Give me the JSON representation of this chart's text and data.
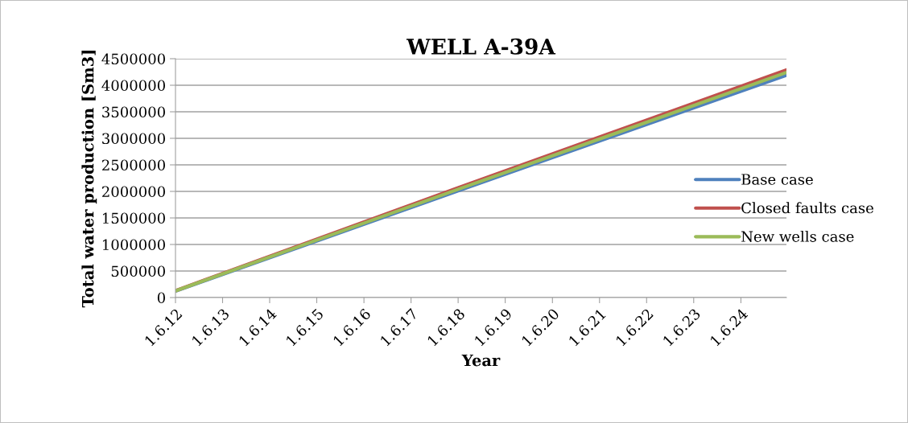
{
  "chart_data": {
    "type": "line",
    "title": "WELL A-39A",
    "xlabel": "Year",
    "ylabel": "Total water production [Sm3]",
    "series": [
      {
        "name": "Base case",
        "color": "#4f81bd",
        "x": [
          "2012-06-01",
          "2018-06-01",
          "2025-05-20"
        ],
        "values": [
          120000,
          2010000,
          4190000
        ]
      },
      {
        "name": "Closed faults case",
        "color": "#c0504d",
        "x": [
          "2012-06-01",
          "2018-06-01",
          "2025-05-20"
        ],
        "values": [
          130000,
          2070000,
          4290000
        ]
      },
      {
        "name": "New wells case",
        "color": "#9bbb59",
        "x": [
          "2012-06-01",
          "2018-06-01",
          "2025-05-20"
        ],
        "values": [
          125000,
          2040000,
          4240000
        ]
      }
    ],
    "xlim": [
      "2012-06-01",
      "2025-05-20"
    ],
    "xticks": [
      {
        "value": "2012-06-01",
        "label": "1.6.12"
      },
      {
        "value": "2013-06-01",
        "label": "1.6.13"
      },
      {
        "value": "2014-06-01",
        "label": "1.6.14"
      },
      {
        "value": "2015-06-01",
        "label": "1.6.15"
      },
      {
        "value": "2016-06-01",
        "label": "1.6.16"
      },
      {
        "value": "2017-06-01",
        "label": "1.6.17"
      },
      {
        "value": "2018-06-01",
        "label": "1.6.18"
      },
      {
        "value": "2019-06-01",
        "label": "1.6.19"
      },
      {
        "value": "2020-06-01",
        "label": "1.6.20"
      },
      {
        "value": "2021-06-01",
        "label": "1.6.21"
      },
      {
        "value": "2022-06-01",
        "label": "1.6.22"
      },
      {
        "value": "2023-06-01",
        "label": "1.6.23"
      },
      {
        "value": "2024-06-01",
        "label": "1.6.24"
      }
    ],
    "ylim": [
      0,
      4500000
    ],
    "yticks": [
      0,
      500000,
      1000000,
      1500000,
      2000000,
      2500000,
      3000000,
      3500000,
      4000000,
      4500000
    ],
    "grid": "y",
    "legend": "right",
    "marker": "none",
    "line_style": "solid"
  }
}
